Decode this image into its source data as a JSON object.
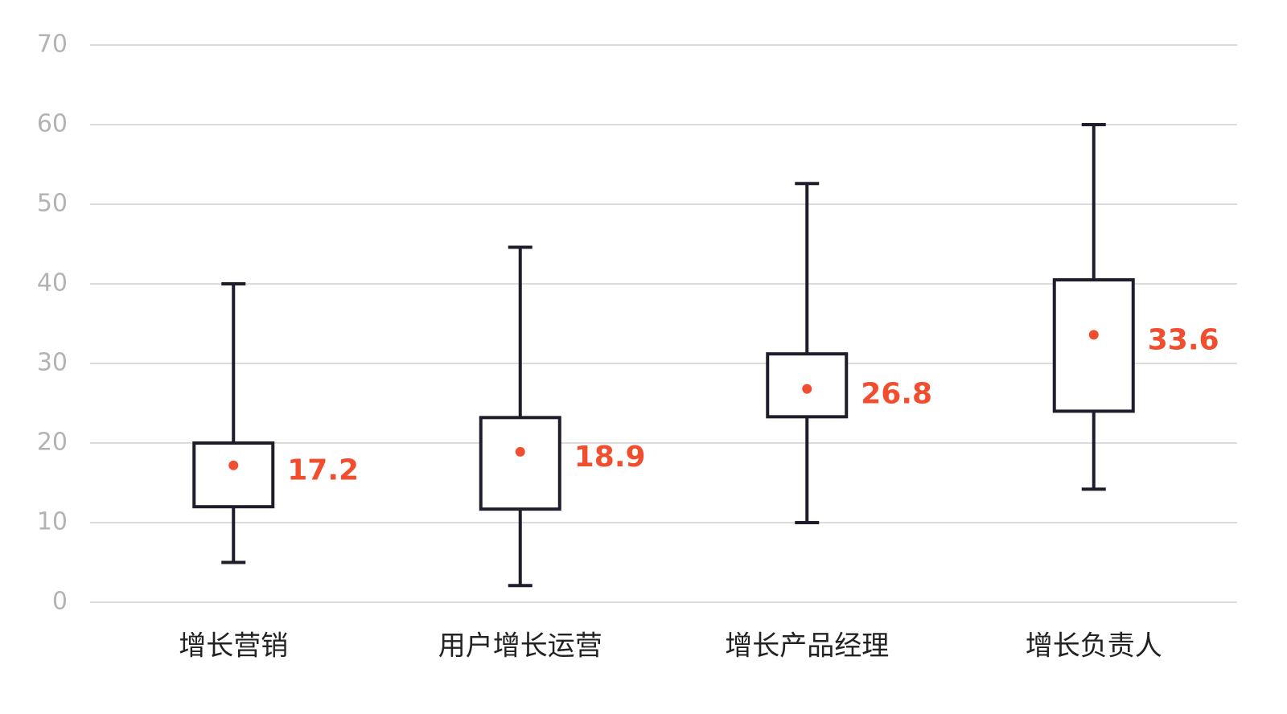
{
  "chart_data": {
    "type": "box",
    "categories": [
      "增长营销",
      "用户增长运营",
      "增长产品经理",
      "增长负责人"
    ],
    "min": [
      5,
      2.1,
      10,
      14.2
    ],
    "q1": [
      12,
      11.7,
      23.3,
      24
    ],
    "q3": [
      20,
      23.2,
      31.2,
      40.5
    ],
    "max": [
      40,
      44.6,
      52.6,
      60
    ],
    "mean": [
      17.2,
      18.9,
      26.8,
      33.6
    ],
    "box_color": "#1f1d2b",
    "mean_color": "#f04e2f",
    "ylim": [
      0,
      70
    ],
    "yticks": [
      0,
      10,
      20,
      30,
      40,
      50,
      60,
      70
    ],
    "grid": true
  }
}
